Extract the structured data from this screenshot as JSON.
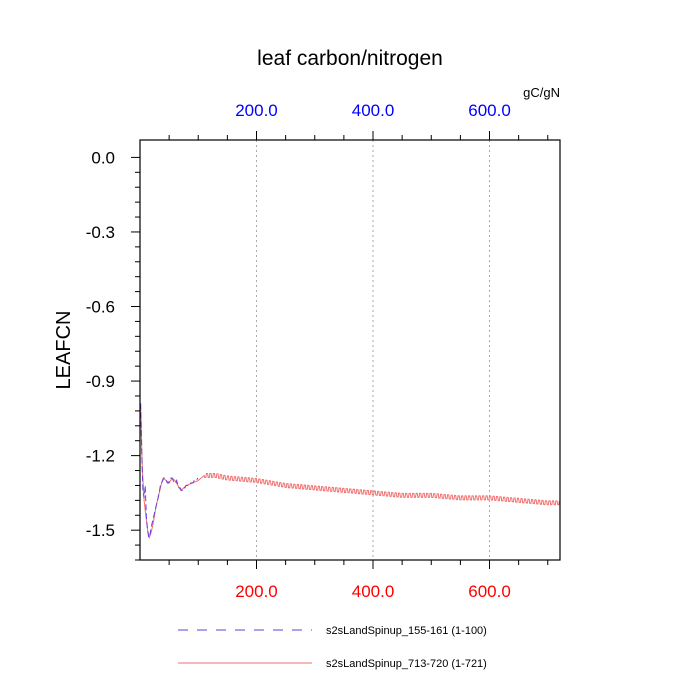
{
  "chart_data": {
    "type": "line",
    "title": "leaf carbon/nitrogen",
    "ylabel": "LEAFCN",
    "units": "gC/gN",
    "xlim": [
      0,
      721
    ],
    "ylim": [
      -1.62,
      0.07
    ],
    "yticks": [
      {
        "value": 0.0,
        "label": "0.0"
      },
      {
        "value": -0.3,
        "label": "-0.3"
      },
      {
        "value": -0.6,
        "label": "-0.6"
      },
      {
        "value": -0.9,
        "label": "-0.9"
      },
      {
        "value": -1.2,
        "label": "-1.2"
      },
      {
        "value": -1.5,
        "label": "-1.5"
      }
    ],
    "xticks_bottom": [
      {
        "value": 200,
        "label": "200.0"
      },
      {
        "value": 400,
        "label": "400.0"
      },
      {
        "value": 600,
        "label": "600.0"
      }
    ],
    "xticks_top": [
      {
        "value": 200,
        "label": "200.0"
      },
      {
        "value": 400,
        "label": "400.0"
      },
      {
        "value": 600,
        "label": "600.0"
      }
    ],
    "grid": "vertical dotted",
    "colors": {
      "top_axis": "#0000ff",
      "bottom_axis": "#ff0000",
      "series_a": "#6a3cd8",
      "series_b": "#f07070"
    },
    "series": [
      {
        "name": "s2sLandSpinup_155-161 (1-100)",
        "style": "dashed",
        "color": "#6a3cd8",
        "points": [
          [
            1,
            -0.99
          ],
          [
            3,
            -1.18
          ],
          [
            5,
            -1.34
          ],
          [
            7,
            -1.37
          ],
          [
            9,
            -1.32
          ],
          [
            11,
            -1.45
          ],
          [
            13,
            -1.5
          ],
          [
            15,
            -1.53
          ],
          [
            17,
            -1.52
          ],
          [
            19,
            -1.49
          ],
          [
            21,
            -1.47
          ],
          [
            23,
            -1.45
          ],
          [
            25,
            -1.43
          ],
          [
            27,
            -1.41
          ],
          [
            29,
            -1.39
          ],
          [
            31,
            -1.37
          ],
          [
            33,
            -1.35
          ],
          [
            35,
            -1.32
          ],
          [
            37,
            -1.31
          ],
          [
            39,
            -1.3
          ],
          [
            41,
            -1.29
          ],
          [
            43,
            -1.29
          ],
          [
            45,
            -1.3
          ],
          [
            47,
            -1.31
          ],
          [
            49,
            -1.31
          ],
          [
            51,
            -1.3
          ],
          [
            53,
            -1.29
          ],
          [
            55,
            -1.29
          ],
          [
            57,
            -1.3
          ],
          [
            59,
            -1.31
          ],
          [
            61,
            -1.31
          ],
          [
            63,
            -1.3
          ],
          [
            65,
            -1.32
          ],
          [
            67,
            -1.33
          ],
          [
            69,
            -1.33
          ],
          [
            71,
            -1.34
          ],
          [
            73,
            -1.34
          ],
          [
            75,
            -1.33
          ],
          [
            77,
            -1.33
          ],
          [
            79,
            -1.32
          ],
          [
            81,
            -1.32
          ],
          [
            83,
            -1.32
          ],
          [
            85,
            -1.32
          ],
          [
            87,
            -1.31
          ],
          [
            89,
            -1.31
          ],
          [
            91,
            -1.31
          ],
          [
            93,
            -1.3
          ],
          [
            95,
            -1.3
          ],
          [
            97,
            -1.3
          ],
          [
            99,
            -1.29
          ]
        ]
      },
      {
        "name": "s2sLandSpinup_713-720 (1-721)",
        "style": "solid",
        "color": "#f07070",
        "points": [
          [
            1,
            -0.99
          ],
          [
            4,
            -1.25
          ],
          [
            7,
            -1.38
          ],
          [
            10,
            -1.44
          ],
          [
            13,
            -1.5
          ],
          [
            16,
            -1.53
          ],
          [
            19,
            -1.51
          ],
          [
            22,
            -1.48
          ],
          [
            25,
            -1.44
          ],
          [
            28,
            -1.4
          ],
          [
            31,
            -1.37
          ],
          [
            34,
            -1.34
          ],
          [
            37,
            -1.31
          ],
          [
            40,
            -1.29
          ],
          [
            45,
            -1.3
          ],
          [
            50,
            -1.31
          ],
          [
            55,
            -1.29
          ],
          [
            60,
            -1.3
          ],
          [
            65,
            -1.32
          ],
          [
            70,
            -1.34
          ],
          [
            75,
            -1.33
          ],
          [
            80,
            -1.32
          ],
          [
            90,
            -1.31
          ],
          [
            100,
            -1.3
          ],
          [
            110,
            -1.28
          ],
          [
            120,
            -1.28
          ],
          [
            130,
            -1.28
          ],
          [
            150,
            -1.29
          ],
          [
            200,
            -1.3
          ],
          [
            250,
            -1.32
          ],
          [
            300,
            -1.33
          ],
          [
            350,
            -1.34
          ],
          [
            400,
            -1.35
          ],
          [
            450,
            -1.36
          ],
          [
            500,
            -1.36
          ],
          [
            550,
            -1.37
          ],
          [
            600,
            -1.37
          ],
          [
            650,
            -1.38
          ],
          [
            700,
            -1.39
          ],
          [
            721,
            -1.39
          ]
        ]
      }
    ]
  }
}
